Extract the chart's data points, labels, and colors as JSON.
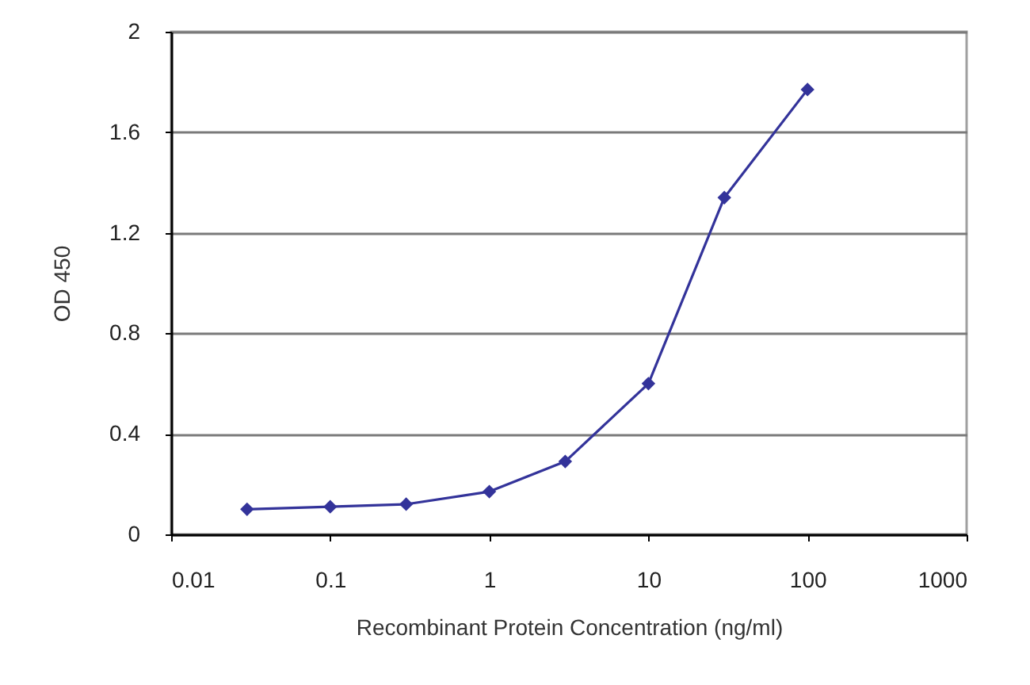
{
  "chart_data": {
    "type": "line",
    "xlabel": "Recombinant Protein Concentration (ng/ml)",
    "ylabel": "OD 450",
    "x": [
      0.03,
      0.1,
      0.3,
      1,
      3,
      10,
      30,
      100
    ],
    "series": [
      {
        "color": "#33339a",
        "values": [
          0.1,
          0.11,
          0.12,
          0.17,
          0.29,
          0.6,
          1.34,
          1.77
        ]
      }
    ],
    "xlim": [
      0.01,
      1000
    ],
    "xticks": [
      0.01,
      0.1,
      1,
      10,
      100,
      1000
    ],
    "ylim": [
      0,
      2
    ],
    "yticks": [
      0,
      0.4,
      0.8,
      1.2,
      1.6,
      2
    ],
    "log": "x",
    "grid": "y",
    "marker": "diamond",
    "line_style": "solid"
  }
}
